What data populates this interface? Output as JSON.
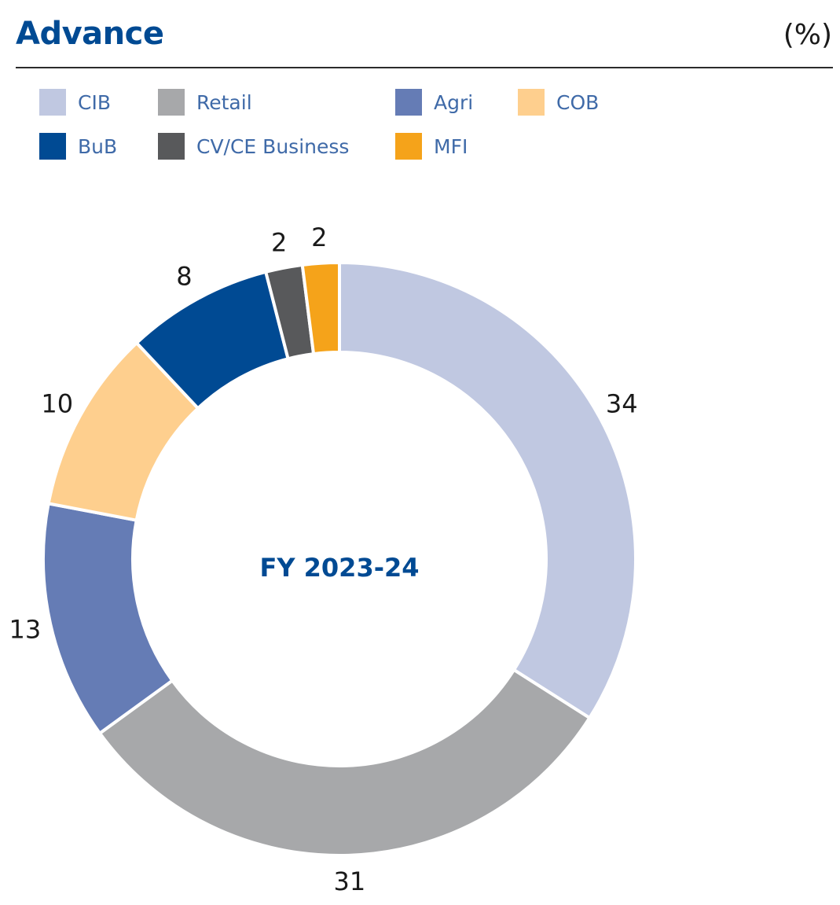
{
  "header": {
    "title": "Advance",
    "unit": "(%)"
  },
  "legend": [
    {
      "label": "CIB",
      "color": "#c0c8e1"
    },
    {
      "label": "Retail",
      "color": "#a7a8aa"
    },
    {
      "label": "Agri",
      "color": "#657cb5"
    },
    {
      "label": "COB",
      "color": "#fecf8e"
    },
    {
      "label": "BuB",
      "color": "#004a93"
    },
    {
      "label": "CV/CE Business",
      "color": "#58595b"
    },
    {
      "label": "MFI",
      "color": "#f5a31a"
    }
  ],
  "chart_data": {
    "type": "pie",
    "variant": "donut",
    "center_label": "FY 2023-24",
    "unit": "%",
    "slices": [
      {
        "label": "CIB",
        "value": 34,
        "color": "#c0c8e1"
      },
      {
        "label": "Retail",
        "value": 31,
        "color": "#a7a8aa"
      },
      {
        "label": "Agri",
        "value": 13,
        "color": "#657cb5"
      },
      {
        "label": "COB",
        "value": 10,
        "color": "#fecf8e"
      },
      {
        "label": "BuB",
        "value": 8,
        "color": "#004a93"
      },
      {
        "label": "CV/CE Business",
        "value": 2,
        "color": "#58595b"
      },
      {
        "label": "MFI",
        "value": 2,
        "color": "#f5a31a"
      }
    ],
    "start": "12 o'clock",
    "direction": "clockwise",
    "legend_position": "top"
  }
}
